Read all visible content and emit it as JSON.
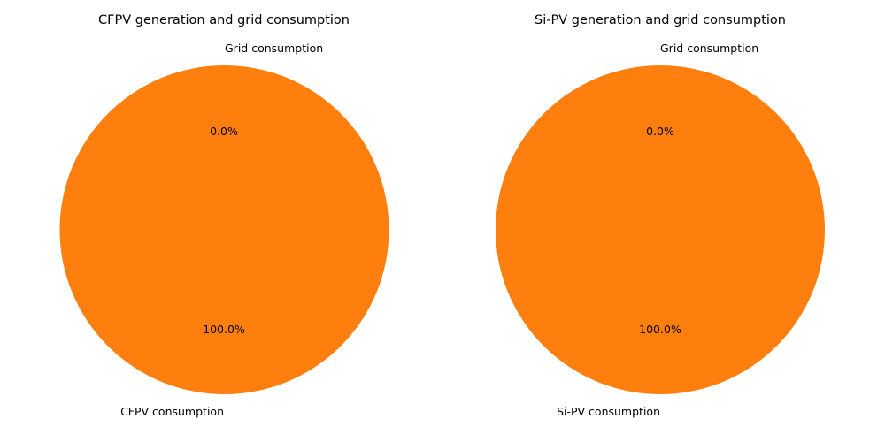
{
  "chart_data": [
    {
      "type": "pie",
      "title": "CFPV generation and grid consumption",
      "slices": [
        {
          "label": "Grid consumption",
          "value": 0.0,
          "pct_label": "0.0%",
          "color": "#1f77b4"
        },
        {
          "label": "CFPV consumption",
          "value": 100.0,
          "pct_label": "100.0%",
          "color": "#ff7f0e"
        }
      ]
    },
    {
      "type": "pie",
      "title": "Si-PV generation and grid consumption",
      "slices": [
        {
          "label": "Grid consumption",
          "value": 0.0,
          "pct_label": "0.0%",
          "color": "#1f77b4"
        },
        {
          "label": "Si-PV consumption",
          "value": 100.0,
          "pct_label": "100.0%",
          "color": "#ff7f0e"
        }
      ]
    }
  ]
}
